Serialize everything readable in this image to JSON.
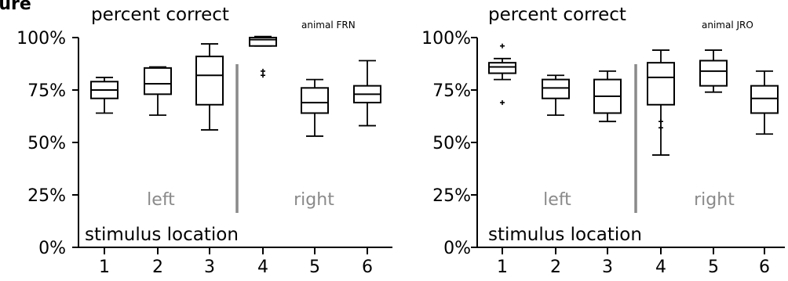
{
  "figure": {
    "corner_label": "Figure"
  },
  "chart_data": [
    {
      "type": "boxplot",
      "title": "percent correct",
      "subtitle": "animal FRN",
      "xlabel": "stimulus location",
      "ylabel": "percent correct",
      "ylim": [
        0,
        100
      ],
      "yticks": [
        "0%",
        "25%",
        "50%",
        "75%",
        "100%"
      ],
      "yticks_values": [
        0,
        25,
        50,
        75,
        100
      ],
      "categories": [
        "1",
        "2",
        "3",
        "4",
        "5",
        "6"
      ],
      "groups": [
        {
          "label": "left",
          "categories": [
            "1",
            "2",
            "3"
          ]
        },
        {
          "label": "right",
          "categories": [
            "4",
            "5",
            "6"
          ]
        }
      ],
      "boxes": [
        {
          "category": "1",
          "whisker_low": 64,
          "q1": 71,
          "median": 75,
          "q3": 79,
          "whisker_high": 81,
          "outliers": []
        },
        {
          "category": "2",
          "whisker_low": 63,
          "q1": 73,
          "median": 78,
          "q3": 85.5,
          "whisker_high": 86,
          "outliers": []
        },
        {
          "category": "3",
          "whisker_low": 56,
          "q1": 68,
          "median": 82,
          "q3": 91,
          "whisker_high": 97,
          "outliers": []
        },
        {
          "category": "4",
          "whisker_low": 96,
          "q1": 96,
          "median": 99,
          "q3": 100,
          "whisker_high": 100.5,
          "outliers": [
            84,
            82
          ]
        },
        {
          "category": "5",
          "whisker_low": 53,
          "q1": 64,
          "median": 69,
          "q3": 76,
          "whisker_high": 80,
          "outliers": []
        },
        {
          "category": "6",
          "whisker_low": 58,
          "q1": 69,
          "median": 73,
          "q3": 77,
          "whisker_high": 89,
          "outliers": []
        }
      ],
      "grid": false,
      "legend": "none"
    },
    {
      "type": "boxplot",
      "title": "percent correct",
      "subtitle": "animal JRO",
      "xlabel": "stimulus location",
      "ylabel": "percent correct",
      "ylim": [
        0,
        100
      ],
      "yticks": [
        "0%",
        "25%",
        "50%",
        "75%",
        "100%"
      ],
      "yticks_values": [
        0,
        25,
        50,
        75,
        100
      ],
      "categories": [
        "1",
        "2",
        "3",
        "4",
        "5",
        "6"
      ],
      "groups": [
        {
          "label": "left",
          "categories": [
            "1",
            "2",
            "3"
          ]
        },
        {
          "label": "right",
          "categories": [
            "4",
            "5",
            "6"
          ]
        }
      ],
      "boxes": [
        {
          "category": "1",
          "whisker_low": 80,
          "q1": 83,
          "median": 86,
          "q3": 88,
          "whisker_high": 90,
          "outliers": [
            96,
            69
          ]
        },
        {
          "category": "2",
          "whisker_low": 63,
          "q1": 71,
          "median": 76,
          "q3": 80,
          "whisker_high": 82,
          "outliers": []
        },
        {
          "category": "3",
          "whisker_low": 60,
          "q1": 64,
          "median": 72,
          "q3": 80,
          "whisker_high": 84,
          "outliers": []
        },
        {
          "category": "4",
          "whisker_low": 44,
          "q1": 68,
          "median": 81,
          "q3": 88,
          "whisker_high": 94,
          "outliers": [
            57,
            60
          ]
        },
        {
          "category": "5",
          "whisker_low": 74,
          "q1": 77,
          "median": 84,
          "q3": 89,
          "whisker_high": 94,
          "outliers": []
        },
        {
          "category": "6",
          "whisker_low": 54,
          "q1": 64,
          "median": 71,
          "q3": 77,
          "whisker_high": 84,
          "outliers": []
        }
      ],
      "grid": false,
      "legend": "none"
    }
  ]
}
